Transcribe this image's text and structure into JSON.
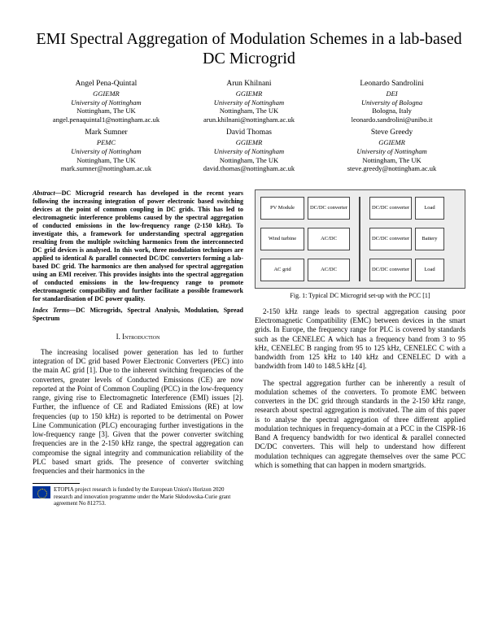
{
  "title": "EMI Spectral Aggregation of Modulation Schemes in a lab-based DC Microgrid",
  "authors": [
    {
      "name": "Angel Pena-Quintal",
      "dept": "GGIEMR",
      "inst": "University of Nottingham",
      "city": "Nottingham, The UK",
      "email": "angel.penaquintal1@nottingham.ac.uk"
    },
    {
      "name": "Arun Khilnani",
      "dept": "GGIEMR",
      "inst": "University of Nottingham",
      "city": "Nottingham, The UK",
      "email": "arun.khilnani@nottingham.ac.uk"
    },
    {
      "name": "Leonardo Sandrolini",
      "dept": "DEI",
      "inst": "University of Bologna",
      "city": "Bologna, Italy",
      "email": "leonardo.sandrolini@unibo.it"
    },
    {
      "name": "Mark Sumner",
      "dept": "PEMC",
      "inst": "University of Nottingham",
      "city": "Nottingham, The UK",
      "email": "mark.sumner@nottingham.ac.uk"
    },
    {
      "name": "David Thomas",
      "dept": "GGIEMR",
      "inst": "University of Nottingham",
      "city": "Nottingham, The UK",
      "email": "david.thomas@nottingham.ac.uk"
    },
    {
      "name": "Steve Greedy",
      "dept": "GGIEMR",
      "inst": "University of Nottingham",
      "city": "Nottingham, The UK",
      "email": "steve.greedy@nottingham.ac.uk"
    }
  ],
  "abstract_label": "Abstract—",
  "abstract": "DC Microgrid research has developed in the recent years following the increasing integration of power electronic based switching devices at the point of common coupling in DC grids. This has led to electromagnetic interference problems caused by the spectral aggregation of conducted emissions in the low-frequency range (2-150 kHz). To investigate this, a framework for understanding spectral aggregation resulting from the multiple switching harmonics from the interconnected DC grid devices is analysed. In this work, three modulation techniques are applied to identical & parallel connected DC/DC converters forming a lab-based DC grid. The harmonics are then analysed for spectral aggregation using an EMI receiver. This provides insights into the spectral aggregation of conducted emissions in the low-frequency range to promote electromagnetic compatibility and further facilitate a possible framework for standardisation of DC power quality.",
  "index_label": "Index Terms—",
  "index_terms": "DC Microgrids, Spectral Analysis, Modulation, Spread Spectrum",
  "section1": "I.  Introduction",
  "p1": "The increasing localised power generation has led to further integration of DC grid based Power Electronic Converters (PEC) into the main AC grid [1]. Due to the inherent switching frequencies of the converters, greater levels of Conducted Emissions (CE) are now reported at the Point of Common Coupling (PCC) in the low-frequency range, giving rise to Electromagnetic Interference (EMI) issues [2]. Further, the influence of CE and Radiated Emissions (RE) at low frequencies (up to 150 kHz) is reported to be detrimental on Power Line Communication (PLC) encouraging further investigations in the low-frequency range [3]. Given that the power converter switching frequencies are in the 2-150 kHz range, the spectral aggregation can compromise the signal integrity and communication reliability of the PLC based smart grids. The presence of converter switching frequencies and their harmonics in the",
  "footnote": "ETOPIA project research is funded by the European Union's Horizon 2020 research and innovation programme under the Marie Skłodowska-Curie grant agreement No 812753.",
  "fig": {
    "caption": "Fig. 1: Typical DC Microgrid set-up with the PCC [1]",
    "nodes": {
      "pv": "PV Module",
      "wind": "Wind turbine",
      "ac": "AC grid",
      "dcdc1": "DC/DC converter",
      "acdc1": "AC/DC",
      "acdc2": "AC/DC",
      "dcdc2": "DC/DC converter",
      "dcdc3": "DC/DC converter",
      "dcdc4": "DC/DC converter",
      "load1": "Load",
      "battery": "Battery",
      "load2": "Load"
    }
  },
  "p2": "2-150 kHz range leads to spectral aggregation causing poor Electromagnetic Compatibility (EMC) between devices in the smart grids. In Europe, the frequency range for PLC is covered by standards such as the CENELEC A which has a frequency band from 3 to 95 kHz, CENELEC B ranging from 95 to 125 kHz, CENELEC C with a bandwidth from 125 kHz to 140 kHz and CENELEC D with a bandwidth from 140 to 148.5 kHz [4].",
  "p3": "The spectral aggregation further can be inherently a result of modulation schemes of the converters. To promote EMC between converters in the DC grid through standards in the 2-150 kHz range, research about spectral aggregation is motivated. The aim of this paper is to analyse the spectral aggregation of three different applied modulation techniques in frequency-domain at a PCC in the CISPR-16 Band A frequency bandwidth for two identical & parallel connected DC/DC converters. This will help to understand how different modulation techniques can aggregate themselves over the same PCC which is something that can happen in modern smartgrids."
}
